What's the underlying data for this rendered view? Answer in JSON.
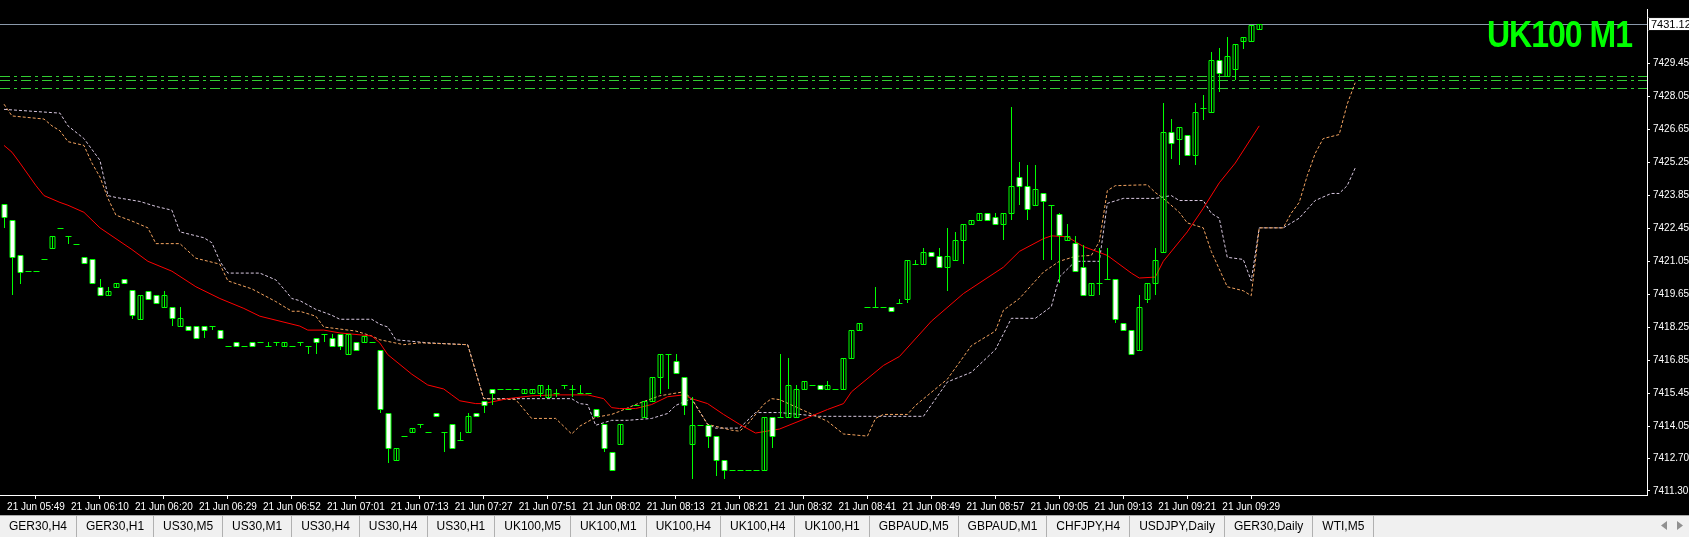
{
  "chart_data": [
    {
      "type": "candlestick",
      "title": "UK100 M1",
      "color": "#00ff00",
      "categories": [
        null,
        null,
        null,
        null,
        "21 Jun 05:49",
        null,
        null,
        null,
        null,
        null,
        null,
        null,
        "21 Jun 06:10",
        null,
        null,
        null,
        null,
        null,
        null,
        null,
        "21 Jun 06:20",
        null,
        null,
        null,
        null,
        null,
        null,
        null,
        "21 Jun 06:29",
        null,
        null,
        null,
        null,
        null,
        null,
        null,
        "21 Jun 06:52",
        null,
        null,
        null,
        null,
        null,
        null,
        null,
        "21 Jun 07:01",
        null,
        null,
        null,
        null,
        null,
        null,
        null,
        "21 Jun 07:13",
        null,
        null,
        null,
        null,
        null,
        null,
        null,
        "21 Jun 07:27",
        null,
        null,
        null,
        null,
        null,
        null,
        null,
        "21 Jun 07:51",
        null,
        null,
        null,
        null,
        null,
        null,
        null,
        "21 Jun 08:02",
        null,
        null,
        null,
        null,
        null,
        null,
        null,
        "21 Jun 08:13",
        null,
        null,
        null,
        null,
        null,
        null,
        null,
        "21 Jun 08:21",
        null,
        null,
        null,
        null,
        null,
        null,
        null,
        "21 Jun 08:32",
        null,
        null,
        null,
        null,
        null,
        null,
        null,
        "21 Jun 08:41",
        null,
        null,
        null,
        null,
        null,
        null,
        null,
        "21 Jun 08:49",
        null,
        null,
        null,
        null,
        null,
        null,
        null,
        "21 Jun 08:57",
        null,
        null,
        null,
        null,
        null,
        null,
        null,
        "21 Jun 09:05",
        null,
        null,
        null,
        null,
        null,
        null,
        null,
        "21 Jun 09:13",
        null,
        null,
        null,
        null,
        null,
        null,
        null,
        "21 Jun 09:21",
        null,
        null,
        null,
        null,
        null,
        null,
        null,
        "21 Jun 09:29",
        null,
        null,
        null,
        null,
        null,
        null,
        null,
        null,
        null,
        null,
        null,
        null,
        null,
        null,
        null,
        null,
        null,
        null,
        null,
        null,
        null,
        null,
        null,
        null,
        null,
        null,
        null,
        null,
        null,
        null,
        null,
        null,
        null,
        null,
        null,
        null,
        null,
        null,
        null,
        null,
        null,
        null,
        null,
        null,
        null,
        null,
        null,
        null,
        null
      ],
      "colors": [
        "#ffffff",
        "#ffffff",
        "#ffffff",
        "#00ff00",
        "#00ff00",
        "#00ff00",
        "#00ff00",
        "#00ff00",
        "#00ff00",
        "#00ff00",
        "#ffffff",
        "#ffffff",
        "#ffffff",
        "#00ff00",
        "#00ff00",
        "#ffffff",
        "#ffffff",
        "#00ff00",
        "#ffffff",
        "#ffffff",
        "#00ff00",
        "#ffffff",
        "#00ff00",
        "#ffffff",
        "#ffffff",
        "#ffffff",
        "#00ff00",
        "#ffffff",
        "#00ff00",
        "#ffffff",
        "#00ff00",
        "#ffffff",
        "#00ff00",
        "#00ff00",
        "#00ff00",
        "#00ff00",
        "#00ff00",
        "#00ff00",
        "#00ff00",
        "#ffffff",
        "#00ff00",
        "#ffffff",
        "#ffffff",
        "#00ff00",
        "#ffffff",
        "#00ff00",
        "#00ff00",
        "#ffffff",
        "#ffffff",
        "#00ff00",
        "#00ff00",
        "#00ff00",
        "#00ff00",
        "#00ff00",
        "#ffffff",
        "#00ff00",
        "#ffffff",
        "#00ff00",
        "#00ff00",
        "#ffffff",
        "#ffffff",
        "#ffffff",
        "#00ff00",
        "#00ff00",
        "#00ff00",
        "#00ff00",
        "#00ff00",
        "#00ff00",
        "#00ff00",
        "#00ff00",
        "#00ff00",
        "#00ff00",
        "#00ff00",
        "#00ff00",
        "#ffffff",
        "#ffffff",
        "#ffffff",
        "#00ff00",
        "#00ff00",
        "#00ff00",
        "#00ff00",
        "#00ff00",
        "#00ff00",
        "#00ff00",
        "#ffffff",
        "#ffffff",
        "#00ff00",
        "#00ff00",
        "#ffffff",
        "#ffffff",
        "#ffffff",
        "#00ff00",
        "#00ff00",
        "#00ff00",
        "#00ff00",
        "#00ff00",
        "#ffffff",
        "#00ff00",
        "#00ff00",
        "#00ff00",
        "#00ff00",
        "#00ff00",
        "#ffffff",
        "#00ff00",
        "#00ff00",
        "#00ff00",
        "#00ff00",
        "#00ff00",
        "#00ff00",
        "#00ff00",
        "#00ff00",
        "#ffffff",
        "#00ff00",
        "#00ff00",
        "#00ff00",
        "#00ff00",
        "#ffffff",
        "#ffffff",
        "#00ff00",
        "#00ff00",
        "#00ff00",
        "#00ff00",
        "#00ff00",
        "#ffffff",
        "#ffffff",
        "#00ff00",
        "#00ff00",
        "#ffffff",
        "#ffffff",
        "#00ff00",
        "#ffffff",
        "#00ff00",
        "#ffffff",
        "#00ff00",
        "#ffffff",
        "#ffffff",
        "#00ff00",
        "#00ff00",
        "#00ff00",
        "#ffffff",
        "#ffffff",
        "#ffffff",
        "#00ff00",
        "#00ff00",
        "#00ff00",
        "#00ff00",
        "#ffffff",
        "#00ff00",
        "#ffffff",
        "#00ff00",
        "#00ff00",
        "#00ff00",
        "#ffffff",
        "#00ff00",
        "#00ff00",
        "#00ff00",
        "#00ff00",
        "#00ff00",
        null,
        null,
        null,
        null,
        null,
        null,
        null,
        null,
        null,
        null,
        null,
        null,
        null,
        null,
        null,
        null,
        null,
        null,
        null,
        null,
        null,
        null,
        null,
        null,
        null,
        null,
        null,
        null,
        null,
        null,
        null,
        null,
        null,
        null,
        null,
        null,
        null,
        null,
        null,
        null,
        null,
        null,
        null,
        null,
        null,
        null,
        null,
        null
      ],
      "ylim": [
        7411.13,
        7431.76
      ],
      "yticks": [
        {
          "value": 7411.3,
          "label": "7411.30"
        },
        {
          "value": 7412.7,
          "label": "7412.70"
        },
        7414.05,
        7415.45,
        7416.85,
        7418.25,
        7419.65,
        7421.05,
        7422.45,
        7423.85,
        7425.25,
        7426.65,
        7428.05,
        7429.45
      ],
      "ohlc": [
        [
          7423.47,
          7423.47,
          7422.47,
          7422.93
        ],
        [
          7422.8,
          7422.8,
          7419.6,
          7421.25
        ],
        [
          7421.3,
          7421.3,
          7420.1,
          7420.6
        ],
        [
          7420.63,
          7420.63,
          7420.63,
          7420.63
        ],
        [
          7420.63,
          7420.63,
          7420.63,
          7420.63
        ],
        [
          7421.13,
          7421.13,
          7421.13,
          7421.13
        ],
        [
          7421.6,
          7422.13,
          7421.6,
          7422.13
        ],
        [
          7422.47,
          7422.47,
          7422.47,
          7422.47
        ],
        [
          7422.13,
          7422.13,
          7421.8,
          7422.13
        ],
        [
          7421.8,
          7421.8,
          7421.8,
          7421.8
        ],
        [
          7421.25,
          7421.25,
          7420.97,
          7420.97
        ],
        [
          7421.13,
          7421.13,
          7420.13,
          7420.13
        ],
        [
          7419.97,
          7420.3,
          7419.63,
          7419.63
        ],
        [
          7419.63,
          7419.97,
          7419.63,
          7419.8
        ],
        [
          7419.97,
          7420.13,
          7419.97,
          7420.13
        ],
        [
          7420.3,
          7420.3,
          7420.13,
          7420.13
        ],
        [
          7419.84,
          7419.84,
          7418.6,
          7418.76
        ],
        [
          7418.6,
          7419.63,
          7418.6,
          7419.63
        ],
        [
          7419.8,
          7419.8,
          7419.47,
          7419.47
        ],
        [
          7419.63,
          7419.63,
          7419.3,
          7419.3
        ],
        [
          7419.13,
          7419.8,
          7419.13,
          7419.63
        ],
        [
          7419.13,
          7419.13,
          7418.3,
          7418.63
        ],
        [
          7418.3,
          7419.13,
          7418.3,
          7418.63
        ],
        [
          7418.3,
          7418.3,
          7418.13,
          7418.13
        ],
        [
          7418.3,
          7418.3,
          7417.8,
          7417.8
        ],
        [
          7418.3,
          7418.3,
          7417.8,
          7418.13
        ],
        [
          7418.3,
          7418.3,
          7418.13,
          7418.3
        ],
        [
          7418.13,
          7418.13,
          7417.8,
          7417.8
        ],
        [
          7417.47,
          7417.47,
          7417.47,
          7417.47
        ],
        [
          7417.63,
          7417.63,
          7417.47,
          7417.47
        ],
        [
          7417.47,
          7417.47,
          7417.47,
          7417.47
        ],
        [
          7417.63,
          7417.63,
          7417.47,
          7417.47
        ],
        [
          7417.63,
          7417.63,
          7417.63,
          7417.63
        ],
        [
          7417.47,
          7417.63,
          7417.47,
          7417.47
        ],
        [
          7417.63,
          7417.63,
          7417.47,
          7417.63
        ],
        [
          7417.47,
          7417.63,
          7417.47,
          7417.63
        ],
        [
          7417.47,
          7417.47,
          7417.47,
          7417.47
        ],
        [
          7417.63,
          7417.63,
          7417.47,
          7417.63
        ],
        [
          7417.45,
          7417.45,
          7417.1,
          7417.45
        ],
        [
          7417.8,
          7417.8,
          7417.1,
          7417.63
        ],
        [
          7417.95,
          7417.95,
          7417.62,
          7417.95
        ],
        [
          7417.8,
          7417.95,
          7417.47,
          7417.47
        ],
        [
          7417.97,
          7417.97,
          7417.3,
          7417.47
        ],
        [
          7417.13,
          7417.97,
          7417.13,
          7417.97
        ],
        [
          7417.63,
          7417.63,
          7417.3,
          7417.3
        ],
        [
          7417.63,
          7417.88,
          7417.63,
          7417.88
        ],
        [
          7417.63,
          7417.63,
          7417.63,
          7417.63
        ],
        [
          7417.3,
          7417.3,
          7414.63,
          7414.8
        ],
        [
          7414.63,
          7414.63,
          7412.47,
          7413.13
        ],
        [
          7412.63,
          7413.13,
          7412.63,
          7413.13
        ],
        [
          7413.63,
          7413.63,
          7413.63,
          7413.63
        ],
        [
          7413.8,
          7413.97,
          7413.8,
          7413.97
        ],
        [
          7414.13,
          7414.13,
          7413.97,
          7414.13
        ],
        [
          7413.8,
          7413.8,
          7413.8,
          7413.8
        ],
        [
          7414.63,
          7414.63,
          7414.47,
          7414.47
        ],
        [
          7413.8,
          7413.8,
          7412.97,
          7413.8
        ],
        [
          7414.13,
          7414.13,
          7413.13,
          7413.13
        ],
        [
          7413.45,
          7413.8,
          7413.45,
          7413.45
        ],
        [
          7413.8,
          7414.63,
          7413.8,
          7414.47
        ],
        [
          7414.63,
          7414.63,
          7414.47,
          7414.47
        ],
        [
          7415.13,
          7415.13,
          7414.63,
          7414.97
        ],
        [
          7415.63,
          7415.63,
          7414.97,
          7415.47
        ],
        [
          7415.63,
          7415.63,
          7415.63,
          7415.63
        ],
        [
          7415.63,
          7415.63,
          7415.63,
          7415.63
        ],
        [
          7415.63,
          7415.63,
          7415.63,
          7415.63
        ],
        [
          7415.47,
          7415.63,
          7415.47,
          7415.63
        ],
        [
          7415.47,
          7415.63,
          7415.47,
          7415.63
        ],
        [
          7415.47,
          7415.8,
          7415.3,
          7415.8
        ],
        [
          7415.3,
          7415.8,
          7415.3,
          7415.63
        ],
        [
          7415.47,
          7415.63,
          7415.3,
          7415.47
        ],
        [
          7415.8,
          7415.8,
          7415.63,
          7415.8
        ],
        [
          7415.63,
          7415.8,
          7415.3,
          7415.63
        ],
        [
          7415.47,
          7415.8,
          7415.47,
          7415.47
        ],
        [
          7415.47,
          7415.47,
          7415.47,
          7415.47
        ],
        [
          7414.8,
          7414.8,
          7414.47,
          7414.47
        ],
        [
          7414.13,
          7414.13,
          7412.97,
          7413.13
        ],
        [
          7412.97,
          7412.97,
          7412.18,
          7412.18
        ],
        [
          7413.3,
          7414.13,
          7413.3,
          7414.13
        ],
        [
          7414.8,
          7414.8,
          7414.8,
          7414.8
        ],
        [
          7414.97,
          7414.97,
          7414.97,
          7414.97
        ],
        [
          7414.45,
          7415.12,
          7414.45,
          7415.12
        ],
        [
          7415.1,
          7416.12,
          7415.1,
          7416.12
        ],
        [
          7416.12,
          7417.12,
          7415.43,
          7417.12
        ],
        [
          7417.12,
          7417.12,
          7415.62,
          7417.12
        ],
        [
          7416.8,
          7417.12,
          7416.3,
          7416.3
        ],
        [
          7416.12,
          7416.12,
          7414.54,
          7414.95
        ],
        [
          7413.29,
          7415.29,
          7411.79,
          7414.12
        ],
        [
          7414.12,
          7414.12,
          7414.12,
          7414.12
        ],
        [
          7414.12,
          7414.12,
          7413.12,
          7413.62
        ],
        [
          7413.62,
          7413.62,
          7411.95,
          7412.62
        ],
        [
          7412.62,
          7412.62,
          7411.79,
          7412.17
        ],
        [
          7412.17,
          7412.17,
          7412.17,
          7412.17
        ],
        [
          7412.17,
          7412.17,
          7412.17,
          7412.17
        ],
        [
          7412.17,
          7412.17,
          7412.17,
          7412.17
        ],
        [
          7412.17,
          7412.17,
          7412.17,
          7412.17
        ],
        [
          7412.17,
          7414.45,
          7412.17,
          7414.45
        ],
        [
          7414.45,
          7414.45,
          7413.12,
          7413.62
        ],
        [
          7414.45,
          7417.12,
          7414.45,
          7414.45
        ],
        [
          7414.45,
          7416.95,
          7414.45,
          7415.79
        ],
        [
          7414.45,
          7415.79,
          7414.45,
          7415.62
        ],
        [
          7415.62,
          7415.95,
          7415.62,
          7415.95
        ],
        [
          7415.79,
          7415.79,
          7415.79,
          7415.79
        ],
        [
          7415.79,
          7415.79,
          7415.62,
          7415.62
        ],
        [
          7415.62,
          7415.95,
          7415.62,
          7415.79
        ],
        [
          7415.62,
          7415.62,
          7415.62,
          7415.62
        ],
        [
          7415.62,
          7416.95,
          7415.62,
          7416.95
        ],
        [
          7416.95,
          7418.12,
          7416.95,
          7418.12
        ],
        [
          7418.12,
          7418.45,
          7418.12,
          7418.45
        ],
        [
          7419.12,
          7419.12,
          7419.12,
          7419.12
        ],
        [
          7419.12,
          7419.95,
          7419.12,
          7419.12
        ],
        [
          7419.12,
          7419.12,
          7419.12,
          7419.12
        ],
        [
          7419.12,
          7419.12,
          7418.95,
          7418.95
        ],
        [
          7419.29,
          7419.45,
          7419.29,
          7419.29
        ],
        [
          7419.45,
          7421.12,
          7419.29,
          7421.12
        ],
        [
          7420.95,
          7421.12,
          7420.95,
          7420.95
        ],
        [
          7420.95,
          7421.62,
          7420.95,
          7421.45
        ],
        [
          7421.45,
          7421.45,
          7421.29,
          7421.29
        ],
        [
          7421.29,
          7421.62,
          7420.79,
          7420.79
        ],
        [
          7420.79,
          7422.45,
          7419.79,
          7421.29
        ],
        [
          7421.12,
          7422.29,
          7421.12,
          7421.95
        ],
        [
          7421.95,
          7422.62,
          7420.95,
          7422.62
        ],
        [
          7422.62,
          7422.79,
          7422.62,
          7422.79
        ],
        [
          7422.79,
          7423.12,
          7422.79,
          7423.12
        ],
        [
          7423.12,
          7423.12,
          7422.79,
          7422.79
        ],
        [
          7422.95,
          7423.12,
          7422.62,
          7422.62
        ],
        [
          7422.62,
          7423.12,
          7421.95,
          7423.12
        ],
        [
          7423.12,
          7427.59,
          7422.79,
          7424.26
        ],
        [
          7424.62,
          7425.26,
          7423.45,
          7424.26
        ],
        [
          7424.26,
          7425.12,
          7422.79,
          7423.26
        ],
        [
          7423.45,
          7425.12,
          7423.45,
          7424.12
        ],
        [
          7423.95,
          7423.95,
          7421.12,
          7423.62
        ],
        [
          7423.45,
          7423.45,
          7421.12,
          7423.45
        ],
        [
          7423.04,
          7423.12,
          7420.12,
          7422.18
        ],
        [
          7421.95,
          7422.62,
          7421.95,
          7422.12
        ],
        [
          7421.81,
          7422.12,
          7420.62,
          7420.62
        ],
        [
          7420.79,
          7421.76,
          7419.62,
          7419.62
        ],
        [
          7419.62,
          7420.12,
          7419.62,
          7420.12
        ],
        [
          7420.12,
          7421.62,
          7419.62,
          7420.12
        ],
        [
          7420.29,
          7421.62,
          7420.29,
          7420.29
        ],
        [
          7420.29,
          7420.29,
          7418.45,
          7418.62
        ],
        [
          7418.45,
          7418.45,
          7418.12,
          7418.12
        ],
        [
          7418.12,
          7418.12,
          7417.12,
          7417.12
        ],
        [
          7417.29,
          7419.62,
          7417.29,
          7419.12
        ],
        [
          7419.45,
          7420.12,
          7419.29,
          7420.12
        ],
        [
          7420.12,
          7421.62,
          7419.62,
          7421.12
        ],
        [
          7421.45,
          7427.76,
          7421.45,
          7426.56
        ],
        [
          7426.56,
          7427.09,
          7425.4,
          7426.06
        ],
        [
          7426.23,
          7426.73,
          7425.12,
          7426.73
        ],
        [
          7426.4,
          7426.4,
          7425.56,
          7425.56
        ],
        [
          7425.56,
          7427.76,
          7425.12,
          7427.4
        ],
        [
          7427.56,
          7428.09,
          7427.06,
          7427.56
        ],
        [
          7427.4,
          7429.92,
          7427.4,
          7429.59
        ],
        [
          7429.59,
          7430.09,
          7428.23,
          7429.06
        ],
        [
          7428.9,
          7430.59,
          7428.9,
          7429.76
        ],
        [
          7429.23,
          7430.26,
          7428.73,
          7430.26
        ],
        [
          7430.4,
          7430.59,
          7430.06,
          7430.59
        ],
        [
          7430.4,
          7431.09,
          7430.4,
          7431.09
        ],
        [
          7430.93,
          7431.12,
          7430.93,
          7431.12
        ],
        null,
        null,
        null,
        null,
        null,
        null,
        null,
        null,
        null,
        null,
        null,
        null,
        null,
        null,
        null,
        null,
        null,
        null,
        null,
        null,
        null,
        null,
        null,
        null,
        null,
        null,
        null,
        null,
        null,
        null,
        null,
        null,
        null,
        null,
        null,
        null,
        null,
        null,
        null,
        null,
        null,
        null,
        null,
        null,
        null,
        null,
        null,
        null
      ],
      "series": [
        {
          "type": "line",
          "color": "#ff0000",
          "line_style": "solid",
          "values": [
            7425.97,
            7425.68,
            7425.22,
            null,
            7424.26,
            7423.84,
            null,
            7423.55,
            7423.43,
            null,
            7423.13,
            null,
            7422.47,
            null,
            null,
            null,
            7421.55,
            null,
            7421.05,
            null,
            null,
            7420.63,
            null,
            null,
            7419.97,
            null,
            null,
            7419.47,
            null,
            null,
            7419.05,
            null,
            7418.72,
            null,
            null,
            null,
            null,
            7418.3,
            7418.13,
            null,
            7418.13,
            null,
            7418.01,
            null,
            null,
            null,
            7417.88,
            7417.59,
            7417.09,
            null,
            null,
            7416.26,
            null,
            7415.8,
            null,
            7415.63,
            7415.38,
            7415.13,
            null,
            7415.01,
            7415.01,
            null,
            null,
            7415.22,
            null,
            null,
            7415.34,
            null,
            null,
            7415.38,
            null,
            null,
            null,
            7415.38,
            null,
            7415.22,
            7414.84,
            7414.8,
            null,
            7414.8,
            null,
            7414.97,
            null,
            7415.3,
            null,
            7415.38,
            7415.22,
            null,
            7415.01,
            null,
            7414.55,
            null,
            7414.13,
            null,
            7413.76,
            null,
            null,
            7413.93,
            null,
            null,
            7414.34,
            null,
            null,
            7414.76,
            null,
            7415.01,
            7415.51,
            null,
            null,
            null,
            7416.63,
            null,
            7417.01,
            null,
            null,
            null,
            7418.51,
            null,
            null,
            null,
            7419.68,
            null,
            null,
            null,
            null,
            7420.8,
            null,
            7421.47,
            null,
            null,
            7422.01,
            7422.13,
            null,
            7422.09,
            null,
            7421.68,
            null,
            null,
            7421.3,
            null,
            null,
            7420.55,
            7420.34,
            null,
            7420.38,
            7421.05,
            null,
            null,
            7422.3,
            null,
            7423.3,
            null,
            7424.38,
            null,
            7425.22,
            null,
            null,
            7426.8,
            null,
            null,
            null,
            null,
            null,
            null,
            null,
            null,
            null,
            null,
            null,
            null,
            null,
            null,
            null,
            null,
            null,
            null,
            null,
            null,
            null,
            null,
            null,
            null,
            null,
            null,
            null,
            null,
            null,
            null,
            null,
            null,
            null,
            null,
            null,
            null,
            null,
            null,
            null,
            null,
            null,
            null,
            null,
            null,
            null,
            null,
            null,
            null
          ]
        },
        {
          "type": "line",
          "color": "#f4a460",
          "line_style": "dashed",
          "values": [
            7427.72,
            7427.22,
            null,
            null,
            null,
            7427.09,
            7426.8,
            7426.59,
            7426.13,
            null,
            7425.97,
            7425.22,
            7424.63,
            7423.72,
            7423.01,
            null,
            7422.76,
            null,
            7422.47,
            7421.8,
            null,
            null,
            7421.8,
            null,
            7421.18,
            null,
            null,
            7420.93,
            7420.22,
            null,
            null,
            7419.88,
            null,
            null,
            7419.34,
            null,
            7418.93,
            7418.93,
            null,
            7418.72,
            7418.26,
            null,
            null,
            null,
            7418.09,
            null,
            7417.88,
            7417.72,
            null,
            null,
            7417.51,
            null,
            7417.59,
            null,
            null,
            null,
            null,
            null,
            7417.51,
            null,
            7415.22,
            null,
            null,
            null,
            7415.18,
            null,
            7414.38,
            null,
            null,
            7414.38,
            null,
            7413.72,
            7414.05,
            null,
            7414.43,
            null,
            7414.55,
            7414.68,
            null,
            7414.97,
            null,
            null,
            7415.34,
            null,
            null,
            7415.51,
            7415.22,
            null,
            7414.13,
            null,
            null,
            7413.88,
            7413.84,
            7414.13,
            null,
            7414.97,
            7415.22,
            7415.18,
            null,
            null,
            null,
            null,
            null,
            7414.26,
            null,
            7413.72,
            null,
            null,
            7413.63,
            7414.38,
            7414.55,
            null,
            null,
            7414.55,
            7414.93,
            null,
            null,
            null,
            7416.05,
            null,
            null,
            7417.47,
            null,
            null,
            7418.09,
            7418.97,
            null,
            7419.47,
            null,
            null,
            7420.59,
            null,
            7421.05,
            null,
            7421.26,
            null,
            7421.3,
            7421.88,
            7424.05,
            7424.26,
            null,
            null,
            null,
            7424.3,
            7423.97,
            7423.72,
            null,
            7423.13,
            7422.68,
            null,
            7422.47,
            7421.47,
            null,
            7419.97,
            null,
            7419.8,
            7419.59,
            7422.47,
            null,
            null,
            7422.47,
            7423.09,
            7423.55,
            7424.68,
            7425.63,
            7426.26,
            null,
            7426.43,
            7427.72,
            7428.63,
            null,
            null,
            null,
            null,
            null,
            null,
            null,
            null,
            null,
            null,
            null,
            null,
            null,
            null,
            null,
            null,
            null,
            null,
            null,
            null,
            null,
            null,
            null,
            null,
            null,
            null,
            null,
            null,
            null,
            null,
            null,
            null,
            null,
            null,
            null,
            null
          ]
        },
        {
          "type": "line",
          "color": "#d8c8e0",
          "line_style": "dashed",
          "values": [
            7427.5,
            null,
            null,
            null,
            null,
            null,
            null,
            7427.34,
            7426.8,
            null,
            7426.26,
            null,
            7425.34,
            7423.84,
            7423.76,
            null,
            null,
            7423.59,
            null,
            7423.38,
            null,
            7423.22,
            7422.3,
            null,
            null,
            7422.05,
            7421.84,
            7421.05,
            7420.55,
            null,
            null,
            null,
            7420.55,
            null,
            7420.26,
            7419.88,
            7419.47,
            7419.38,
            null,
            7419.01,
            null,
            7418.76,
            7418.59,
            null,
            null,
            null,
            7418.59,
            7418.38,
            7418.26,
            7417.72,
            null,
            null,
            null,
            7417.59,
            null,
            null,
            null,
            null,
            7417.51,
            null,
            7415.22,
            null,
            null,
            null,
            null,
            null,
            7415.22,
            null,
            null,
            null,
            null,
            7415.22,
            7415.01,
            7414.97,
            7414.09,
            null,
            7414.3,
            null,
            7414.3,
            null,
            null,
            7414.38,
            null,
            7414.59,
            7414.93,
            null,
            7415.22,
            null,
            7414.13,
            7413.97,
            null,
            null,
            7413.97,
            null,
            7414.63,
            null,
            null,
            7414.63,
            null,
            null,
            null,
            null,
            7414.47,
            null,
            null,
            null,
            null,
            null,
            null,
            null,
            null,
            null,
            null,
            null,
            null,
            7414.47,
            null,
            null,
            7415.93,
            null,
            null,
            7416.34,
            null,
            null,
            7417.3,
            null,
            7418.63,
            null,
            null,
            7418.63,
            null,
            7419.13,
            7420.38,
            null,
            7421.05,
            null,
            null,
            7421.05,
            7423.51,
            null,
            7423.72,
            null,
            null,
            null,
            7423.72,
            null,
            7423.84,
            7423.63,
            null,
            null,
            7423.63,
            7423.09,
            7422.88,
            7421.22,
            null,
            7421.13,
            7420.22,
            7422.47,
            null,
            null,
            7422.47,
            null,
            7422.88,
            null,
            7423.63,
            null,
            7423.93,
            7423.93,
            7424.26,
            7425.01,
            null,
            null,
            null,
            null,
            null,
            null,
            null,
            null,
            null,
            null,
            null,
            null,
            null,
            null,
            null,
            null,
            null,
            null,
            null,
            null,
            null,
            null,
            null,
            null,
            null,
            null,
            null,
            null,
            null,
            null,
            null,
            null,
            null,
            null,
            null,
            null
          ]
        }
      ],
      "ref_lines": [
        {
          "axis": "y",
          "value": 7428.9,
          "color": "#32cd32",
          "line_style": "dashed"
        },
        {
          "axis": "y",
          "value": 7428.75,
          "color": "#32cd32",
          "line_style": "dashed"
        },
        {
          "axis": "y",
          "value": 7428.4,
          "color": "#32cd32",
          "line_style": "dashed"
        },
        {
          "axis": "y",
          "value": 7431.12,
          "label": "7431.12",
          "color": "#8a99aa",
          "line_style": "solid"
        }
      ]
    },
    {
      "type": "other",
      "annotations": [
        "GER30,H4",
        "GER30,H1",
        "US30,M5",
        "US30,M1",
        "US30,H4",
        "US30,H4",
        "US30,H1",
        "UK100,M5",
        "UK100,M1",
        "UK100,H4",
        "UK100,H4",
        "UK100,H1",
        "GBPAUD,M5",
        "GBPAUD,M1",
        "CHFJPY,H4",
        "USDJPY,Daily",
        "GER30,Daily",
        "WTI,M5"
      ]
    }
  ]
}
